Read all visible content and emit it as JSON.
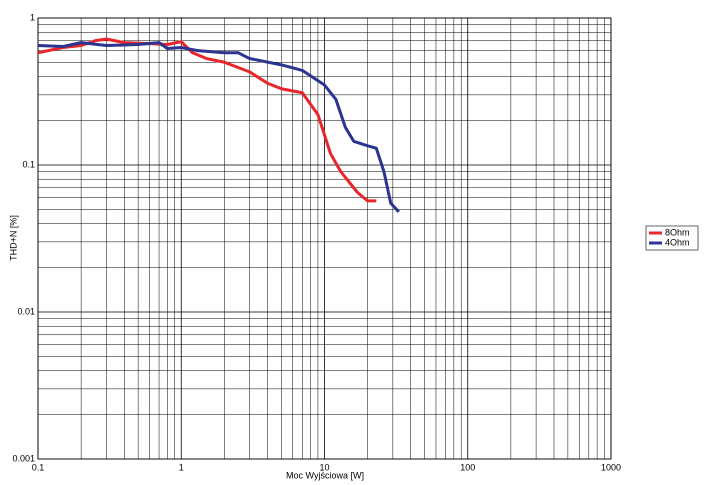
{
  "chart_data": {
    "type": "line",
    "x_label": "Moc Wyjściowa [W]",
    "y_label": "THD+N [%]",
    "xlog": true,
    "ylog": true,
    "grid": true,
    "minor_grid": true,
    "legend": "right",
    "xlim": [
      0.1,
      1000
    ],
    "xticks": [
      0.1,
      1,
      10,
      100,
      1000
    ],
    "ylim": [
      0.001,
      1
    ],
    "yticks": [
      0.001,
      0.01,
      0.1,
      1
    ],
    "series": [
      {
        "name": "8Ohm",
        "color": "#e8262b",
        "x": [
          0.1,
          0.15,
          0.2,
          0.25,
          0.3,
          0.4,
          0.6,
          0.8,
          1,
          1.2,
          1.5,
          2,
          3,
          4,
          5,
          7,
          9,
          11,
          13,
          17,
          20,
          23
        ],
        "values": [
          0.58,
          0.63,
          0.65,
          0.7,
          0.72,
          0.68,
          0.67,
          0.66,
          0.69,
          0.58,
          0.53,
          0.5,
          0.43,
          0.36,
          0.33,
          0.31,
          0.22,
          0.12,
          0.09,
          0.065,
          0.057,
          0.057
        ]
      },
      {
        "name": "4Ohm",
        "color": "#2b3590",
        "x": [
          0.1,
          0.15,
          0.2,
          0.3,
          0.5,
          0.7,
          0.8,
          1,
          1.3,
          2,
          2.5,
          3,
          5,
          7,
          10,
          12,
          14,
          16,
          20,
          23,
          26,
          29,
          33
        ],
        "values": [
          0.65,
          0.64,
          0.68,
          0.65,
          0.66,
          0.68,
          0.62,
          0.63,
          0.6,
          0.58,
          0.58,
          0.53,
          0.48,
          0.44,
          0.35,
          0.28,
          0.18,
          0.145,
          0.135,
          0.13,
          0.09,
          0.055,
          0.048
        ]
      }
    ]
  }
}
